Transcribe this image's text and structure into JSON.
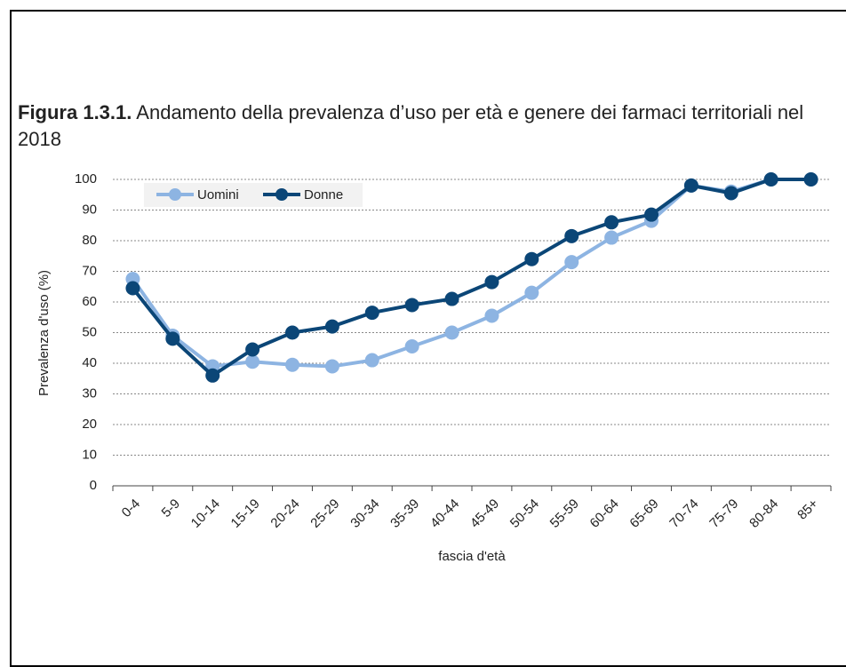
{
  "chart_data": {
    "type": "line",
    "title_label": "Figura 1.3.1.",
    "title": "Andamento della prevalenza d’uso per età e genere dei farmaci territoriali nel 2018",
    "x_label": "fascia d'età",
    "y_label": "Prevalenza d'uso (%)",
    "categories": [
      "0-4",
      "5-9",
      "10-14",
      "15-19",
      "20-24",
      "25-29",
      "30-34",
      "35-39",
      "40-44",
      "45-49",
      "50-54",
      "55-59",
      "60-64",
      "65-69",
      "70-74",
      "75-79",
      "80-84",
      "85+"
    ],
    "series": [
      {
        "name": "Uomini",
        "color": "#8db4e2",
        "values": [
          67.5,
          49,
          39,
          40.5,
          39.5,
          39,
          41,
          45.5,
          50,
          55.5,
          63,
          73,
          81,
          86.5,
          98,
          96,
          100,
          100
        ]
      },
      {
        "name": "Donne",
        "color": "#0b4677",
        "values": [
          64.5,
          48,
          36,
          44.5,
          50,
          52,
          56.5,
          59,
          61,
          66.5,
          74,
          81.5,
          86,
          88.5,
          98,
          95.5,
          100,
          100
        ]
      }
    ],
    "ylim": [
      0,
      100
    ],
    "yticks": [
      0,
      10,
      20,
      30,
      40,
      50,
      60,
      70,
      80,
      90,
      100
    ],
    "grid": true,
    "legend": "upper left"
  }
}
